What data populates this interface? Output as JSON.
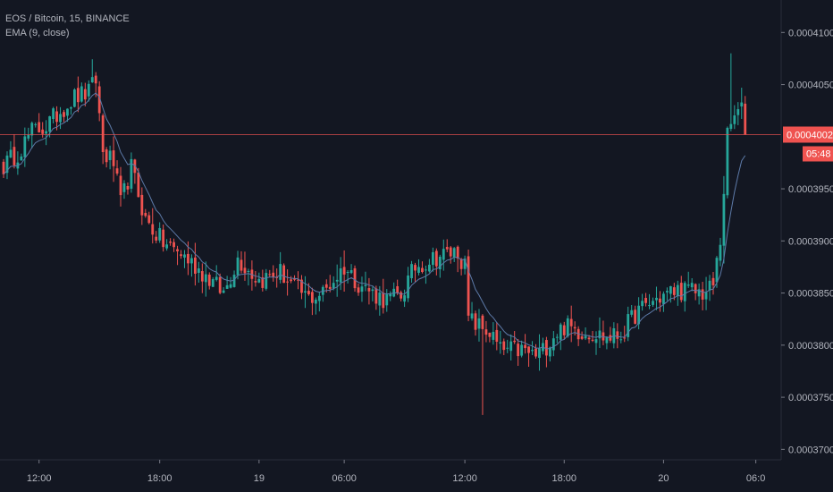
{
  "chart_data": {
    "type": "candlestick",
    "title": "EOS / Bitcoin, 15, BINANCE",
    "indicator": "EMA (9, close)",
    "ylim": [
      0.000369,
      0.000412
    ],
    "y_ticks": [
      "0.0004100",
      "0.0004050",
      "0.0003950",
      "0.0003900",
      "0.0003850",
      "0.0003800",
      "0.0003750",
      "0.0003700"
    ],
    "x_tick_labels": [
      "12:00",
      "18:00",
      "19",
      "06:00",
      "12:00",
      "18:00",
      "20",
      "06:0"
    ],
    "last_price": "0.0004002",
    "countdown": "05:48",
    "grid": false,
    "colors": {
      "background": "#131722",
      "up": "#26a69a",
      "down": "#ef5350",
      "ema": "#5d7aa8",
      "price_line": "#ef5350",
      "text": "#b2b5be"
    },
    "anchor_close": [
      [
        0,
        0.0003972
      ],
      [
        4,
        0.0003985
      ],
      [
        8,
        0.0004005
      ],
      [
        12,
        0.000401
      ],
      [
        16,
        0.0004025
      ],
      [
        20,
        0.0004038
      ],
      [
        24,
        0.0004042
      ],
      [
        26,
        0.0004055
      ],
      [
        28,
        0.0003985
      ],
      [
        31,
        0.0003975
      ],
      [
        33,
        0.0003935
      ],
      [
        36,
        0.000397
      ],
      [
        40,
        0.000392
      ],
      [
        45,
        0.0003898
      ],
      [
        50,
        0.0003888
      ],
      [
        56,
        0.000387
      ],
      [
        62,
        0.000385
      ],
      [
        66,
        0.0003883
      ],
      [
        72,
        0.0003862
      ],
      [
        78,
        0.000387
      ],
      [
        82,
        0.0003855
      ],
      [
        86,
        0.0003845
      ],
      [
        90,
        0.000385
      ],
      [
        96,
        0.0003875
      ],
      [
        100,
        0.000386
      ],
      [
        104,
        0.000385
      ],
      [
        108,
        0.0003843
      ],
      [
        112,
        0.0003848
      ],
      [
        116,
        0.0003875
      ],
      [
        122,
        0.0003885
      ],
      [
        128,
        0.000389
      ],
      [
        130,
        0.0003875
      ],
      [
        131,
        0.0003825
      ],
      [
        134,
        0.0003818
      ],
      [
        137,
        0.0003812
      ],
      [
        140,
        0.0003795
      ],
      [
        146,
        0.0003795
      ],
      [
        150,
        0.000379
      ],
      [
        152,
        0.0003795
      ],
      [
        155,
        0.000381
      ],
      [
        158,
        0.0003818
      ],
      [
        162,
        0.0003814
      ],
      [
        166,
        0.0003812
      ],
      [
        170,
        0.0003807
      ],
      [
        174,
        0.000381
      ],
      [
        178,
        0.000383
      ],
      [
        182,
        0.000384
      ],
      [
        186,
        0.0003848
      ],
      [
        190,
        0.0003853
      ],
      [
        194,
        0.0003852
      ],
      [
        198,
        0.000385
      ],
      [
        200,
        0.0003858
      ],
      [
        202,
        0.00039
      ],
      [
        204,
        0.0004
      ],
      [
        206,
        0.000402
      ],
      [
        208,
        0.0004025
      ],
      [
        209,
        0.0004002
      ]
    ]
  }
}
